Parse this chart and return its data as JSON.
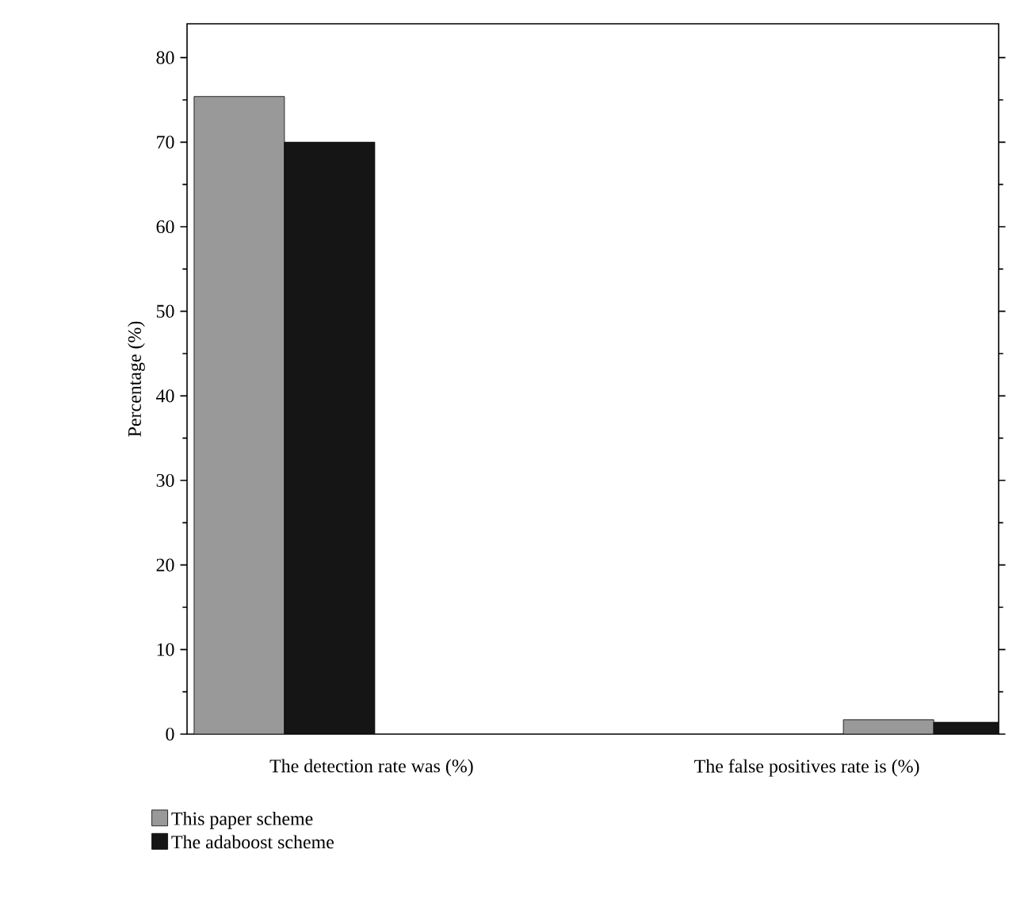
{
  "chart_data": {
    "type": "bar",
    "ylabel": "Percentage (%)",
    "categories": [
      "The detection rate was (%)",
      "The false positives rate is (%)"
    ],
    "series": [
      {
        "name": "This paper scheme",
        "color": "#999999",
        "values": [
          75.4,
          1.7
        ]
      },
      {
        "name": "The adaboost scheme",
        "color": "#151515",
        "values": [
          70,
          1.4
        ]
      }
    ],
    "ylim": [
      0,
      84
    ],
    "yticks": [
      0,
      10,
      20,
      30,
      40,
      50,
      60,
      70,
      80
    ],
    "grid": false,
    "legend": "bottom left"
  }
}
